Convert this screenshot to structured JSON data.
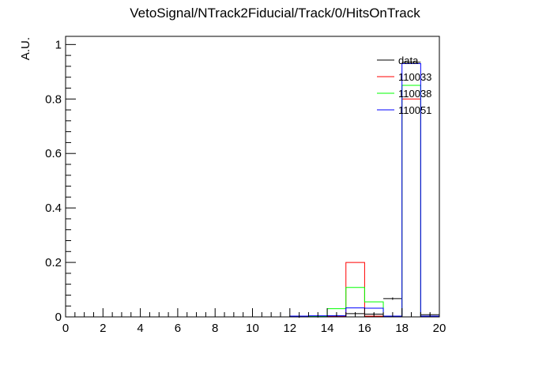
{
  "chart_data": {
    "type": "histogram",
    "title": "VetoSignal/NTrack2Fiducial/Track/0/HitsOnTrack",
    "xlabel": "",
    "ylabel": "A.U.",
    "xlim": [
      0,
      20
    ],
    "ylim": [
      0,
      1.03
    ],
    "x_ticks": [
      0,
      2,
      4,
      6,
      8,
      10,
      12,
      14,
      16,
      18,
      20
    ],
    "y_ticks": [
      0,
      0.2,
      0.4,
      0.6,
      0.8,
      1
    ],
    "grid": false,
    "legend_position": "top-right",
    "bin_edges": [
      12,
      13,
      14,
      15,
      16,
      17,
      18,
      19,
      20
    ],
    "series": [
      {
        "name": "data",
        "color": "#000000",
        "style": "points",
        "values": [
          0.001,
          0.002,
          0.004,
          0.012,
          0.01,
          0.067,
          0.935,
          0.008
        ]
      },
      {
        "name": "110033",
        "color": "#ff0000",
        "style": "step",
        "values": [
          0.002,
          0.003,
          0.003,
          0.2,
          0.003,
          0.003,
          0.8,
          0.003
        ]
      },
      {
        "name": "110038",
        "color": "#00ff00",
        "style": "step",
        "values": [
          0.002,
          0.003,
          0.03,
          0.108,
          0.055,
          0.003,
          0.85,
          0.003
        ]
      },
      {
        "name": "110051",
        "color": "#0000ff",
        "style": "step",
        "values": [
          0.003,
          0.004,
          0.004,
          0.033,
          0.032,
          0.003,
          0.93,
          0.003
        ]
      }
    ]
  }
}
